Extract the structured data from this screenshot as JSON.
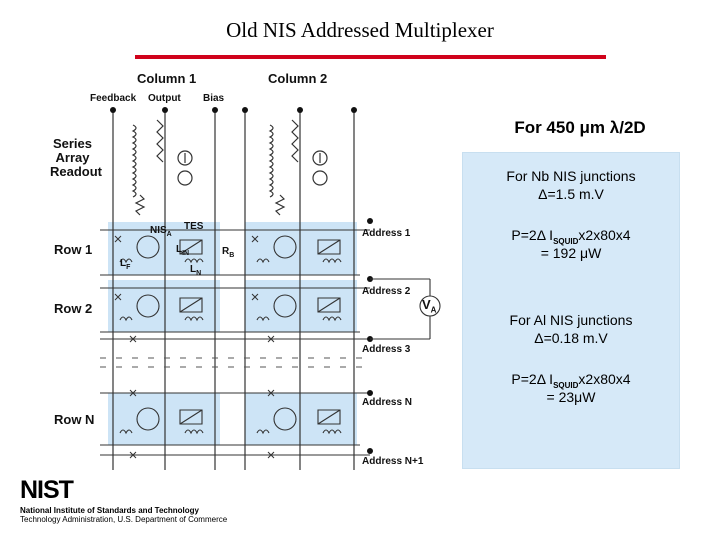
{
  "title": "Old NIS Addressed Multiplexer",
  "columns": {
    "col1": "Column 1",
    "col2": "Column 2",
    "feedback": "Feedback",
    "output": "Output",
    "bias": "Bias"
  },
  "readout": [
    "Series",
    "Array",
    "Readout"
  ],
  "rows": {
    "row1": "Row 1",
    "row2": "Row 2",
    "rowN": "Row N"
  },
  "component_labels": {
    "nisa_main": "NIS",
    "nisa_sub": "A",
    "tes": "TES",
    "lin_main": "L",
    "lin_sub": "IN",
    "rb_main": "R",
    "rb_sub": "B",
    "lf_main": "L",
    "lf_sub": "F",
    "ln_main": "L",
    "ln_sub": "N"
  },
  "addresses": [
    "Address 1",
    "Address 2",
    "Address 3",
    "Address N",
    "Address N+1"
  ],
  "va": {
    "main": "V",
    "sub": "A"
  },
  "right_heading": "For 450 μm  λ/2D",
  "panel": {
    "nb_heading": "For Nb NIS junctions",
    "nb_delta": "Δ=1.5 m.V",
    "nb_p_prefix": "P=2Δ I",
    "nb_p_sub": "SQUID",
    "nb_p_suffix": "x2x80x4",
    "nb_result": "= 192 μW",
    "al_heading": "For Al NIS junctions",
    "al_delta": "Δ=0.18 m.V",
    "al_p_prefix": "P=2Δ I",
    "al_p_sub": "SQUID",
    "al_p_suffix": "x2x80x4",
    "al_result": "= 23μW"
  },
  "nist": {
    "logo": "NIST",
    "line1": "National Institute of Standards and Technology",
    "line2": "Technology Administration, U.S. Department of Commerce"
  }
}
